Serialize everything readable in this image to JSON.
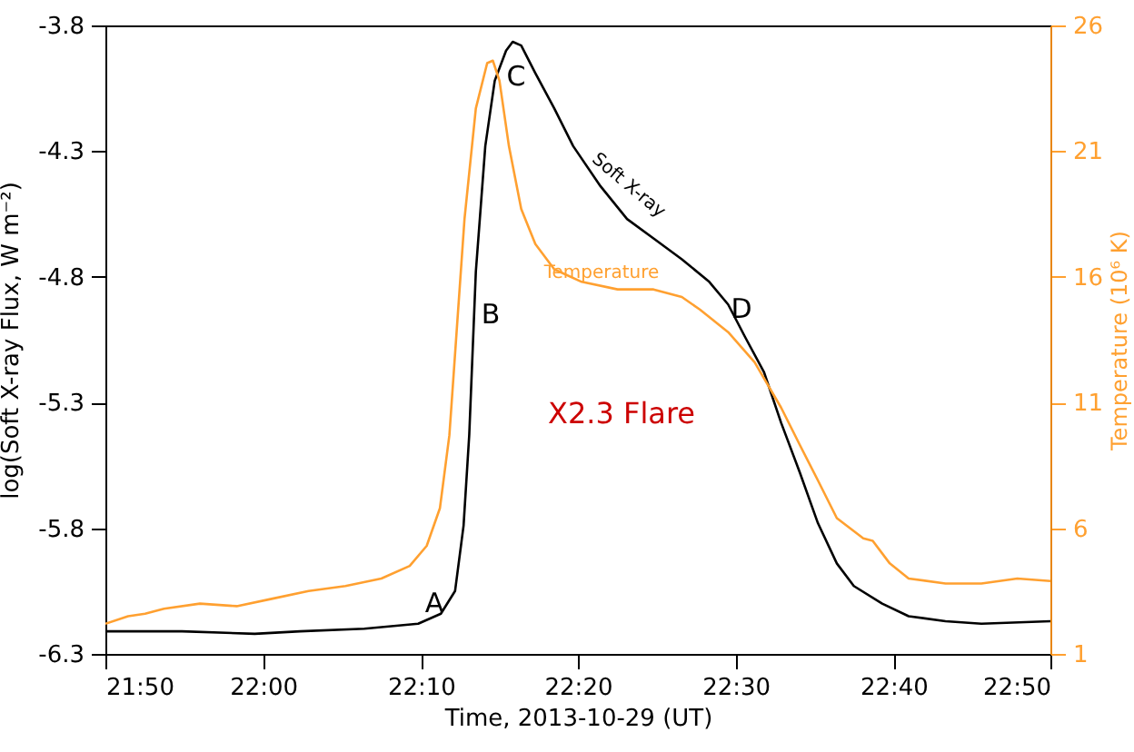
{
  "chart_data": {
    "type": "line",
    "xlabel": "Time, 2013-10-29 (UT)",
    "ylabel": "log(Soft X-ray Flux, W m⁻²)",
    "y2label": "Temperature (10⁶ K)",
    "xlim": [
      21.833,
      22.833
    ],
    "xticks": [
      {
        "value": 21.833,
        "label": "21:50"
      },
      {
        "value": 22.0,
        "label": "22:00"
      },
      {
        "value": 22.167,
        "label": "22:10"
      },
      {
        "value": 22.333,
        "label": "22:20"
      },
      {
        "value": 22.5,
        "label": "22:30"
      },
      {
        "value": 22.667,
        "label": "22:40"
      },
      {
        "value": 22.833,
        "label": "22:50"
      }
    ],
    "ylim": [
      -6.3,
      -3.8
    ],
    "yticks": [
      -6.3,
      -5.8,
      -5.3,
      -4.8,
      -4.3,
      -3.8
    ],
    "y2lim": [
      1,
      26
    ],
    "y2ticks": [
      1,
      6,
      11,
      16,
      21,
      26
    ],
    "grid": false,
    "series": [
      {
        "color": "#000000",
        "x": [
          21.833,
          21.914,
          21.991,
          22.039,
          22.107,
          22.164,
          22.188,
          22.203,
          22.212,
          22.218,
          22.225,
          22.235,
          22.245,
          22.257,
          22.264,
          22.273,
          22.288,
          22.308,
          22.328,
          22.357,
          22.385,
          22.414,
          22.443,
          22.472,
          22.492,
          22.51,
          22.53,
          22.548,
          22.568,
          22.587,
          22.607,
          22.625,
          22.655,
          22.683,
          22.722,
          22.76,
          22.833
        ],
        "values": [
          -6.21,
          -6.21,
          -6.22,
          -6.21,
          -6.2,
          -6.18,
          -6.14,
          -6.05,
          -5.79,
          -5.43,
          -4.78,
          -4.28,
          -4.02,
          -3.9,
          -3.865,
          -3.88,
          -3.99,
          -4.13,
          -4.28,
          -4.44,
          -4.57,
          -4.65,
          -4.73,
          -4.82,
          -4.91,
          -5.04,
          -5.18,
          -5.38,
          -5.58,
          -5.78,
          -5.94,
          -6.03,
          -6.1,
          -6.15,
          -6.17,
          -6.18,
          -6.17
        ]
      },
      {
        "color": "#ffa030",
        "axis": "y2",
        "x": [
          21.833,
          21.857,
          21.875,
          21.895,
          21.933,
          21.972,
          22.01,
          22.048,
          22.087,
          22.125,
          22.155,
          22.173,
          22.187,
          22.197,
          22.205,
          22.213,
          22.225,
          22.237,
          22.243,
          22.25,
          22.26,
          22.273,
          22.288,
          22.308,
          22.337,
          22.375,
          22.413,
          22.443,
          22.462,
          22.492,
          22.52,
          22.548,
          22.568,
          22.587,
          22.607,
          22.635,
          22.645,
          22.663,
          22.683,
          22.722,
          22.76,
          22.798,
          22.833
        ],
        "values": [
          2.2,
          2.5,
          2.6,
          2.8,
          3.0,
          2.9,
          3.2,
          3.5,
          3.7,
          4.0,
          4.5,
          5.3,
          6.8,
          9.7,
          14.0,
          18.3,
          22.7,
          24.5,
          24.6,
          23.8,
          21.2,
          18.7,
          17.3,
          16.3,
          15.8,
          15.5,
          15.5,
          15.2,
          14.7,
          13.8,
          12.6,
          10.8,
          9.3,
          7.9,
          6.4,
          5.6,
          5.5,
          4.6,
          4.0,
          3.8,
          3.8,
          4.0,
          3.9
        ]
      }
    ],
    "annotations": [
      "A",
      "B",
      "C",
      "D",
      "Soft X-ray",
      "Temperature",
      "X2.3 Flare"
    ]
  }
}
